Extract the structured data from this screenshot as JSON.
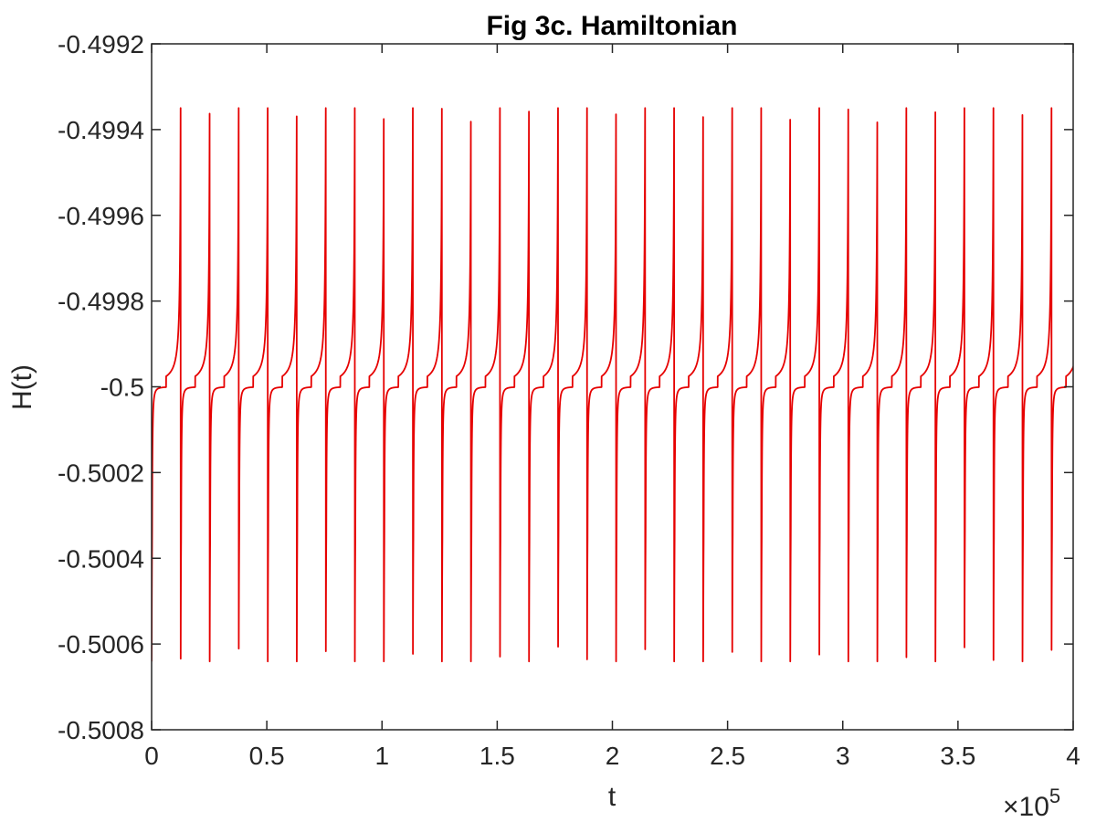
{
  "chart_data": {
    "type": "line",
    "title": "Fig 3c. Hamiltonian",
    "xlabel": "t",
    "ylabel": "H(t)",
    "xlim": [
      0,
      400000
    ],
    "ylim": [
      -0.5008,
      -0.4992
    ],
    "x_exponent_label": "×10",
    "x_exponent_power": "5",
    "x_ticks": [
      0,
      50000,
      100000,
      150000,
      200000,
      250000,
      300000,
      350000,
      400000
    ],
    "x_tick_labels": [
      "0",
      "0.5",
      "1",
      "1.5",
      "2",
      "2.5",
      "3",
      "3.5",
      "4"
    ],
    "y_ticks": [
      -0.4992,
      -0.4994,
      -0.4996,
      -0.4998,
      -0.5,
      -0.5002,
      -0.5004,
      -0.5006,
      -0.5008
    ],
    "y_tick_labels": [
      "-0.4992",
      "-0.4994",
      "-0.4996",
      "-0.4998",
      "-0.5",
      "-0.5002",
      "-0.5004",
      "-0.5006",
      "-0.5008"
    ],
    "grid": false,
    "series": [
      {
        "name": "H(t)",
        "color": "#e60000",
        "period": 12600,
        "num_cycles": 31.8,
        "baseline": -0.5,
        "peak": -0.49932,
        "trough": -0.50067,
        "description": "periodic spikes: sharp rise to peak then instant drop to trough"
      }
    ]
  }
}
